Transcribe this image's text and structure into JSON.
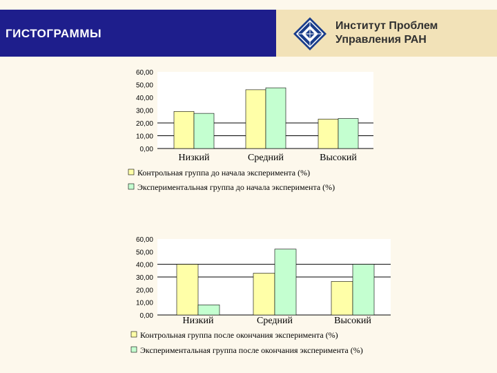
{
  "slide": {
    "title": "ГИСТОГРАММЫ"
  },
  "institute": {
    "line1": "Институт Проблем",
    "line2": "Управления РАН"
  },
  "colors": {
    "series1": "#ffffa8",
    "series2": "#c4ffd0",
    "header_blue": "#1e1e8c",
    "header_beige": "#f2e2b8"
  },
  "chart_data": [
    {
      "type": "bar",
      "categories": [
        "Низкий",
        "Средний",
        "Высокий"
      ],
      "series": [
        {
          "name": "Контрольная группа до начала эксперимента (%)",
          "values": [
            29,
            46,
            23
          ]
        },
        {
          "name": "Экспериментальная группа до начала эксперимента (%)",
          "values": [
            27.5,
            47.5,
            23.5
          ]
        }
      ],
      "yticks": [
        "60,00",
        "50,00",
        "40,00",
        "30,00",
        "20,00",
        "10,00",
        "0,00"
      ],
      "ylim": [
        0,
        60
      ],
      "gridlines": [
        0,
        10,
        20
      ],
      "legend_position": "bottom"
    },
    {
      "type": "bar",
      "categories": [
        "Низкий",
        "Средний",
        "Высокий"
      ],
      "series": [
        {
          "name": "Контрольная группа после окончания эксперимента (%)",
          "values": [
            40,
            33,
            26.5
          ]
        },
        {
          "name": "Экспериментальная группа после окончания эксперимента (%)",
          "values": [
            8,
            52,
            40
          ]
        }
      ],
      "yticks": [
        "60,00",
        "50,00",
        "40,00",
        "30,00",
        "20,00",
        "10,00",
        "0,00"
      ],
      "ylim": [
        0,
        60
      ],
      "gridlines": [
        0,
        30,
        40
      ],
      "legend_position": "bottom"
    }
  ]
}
